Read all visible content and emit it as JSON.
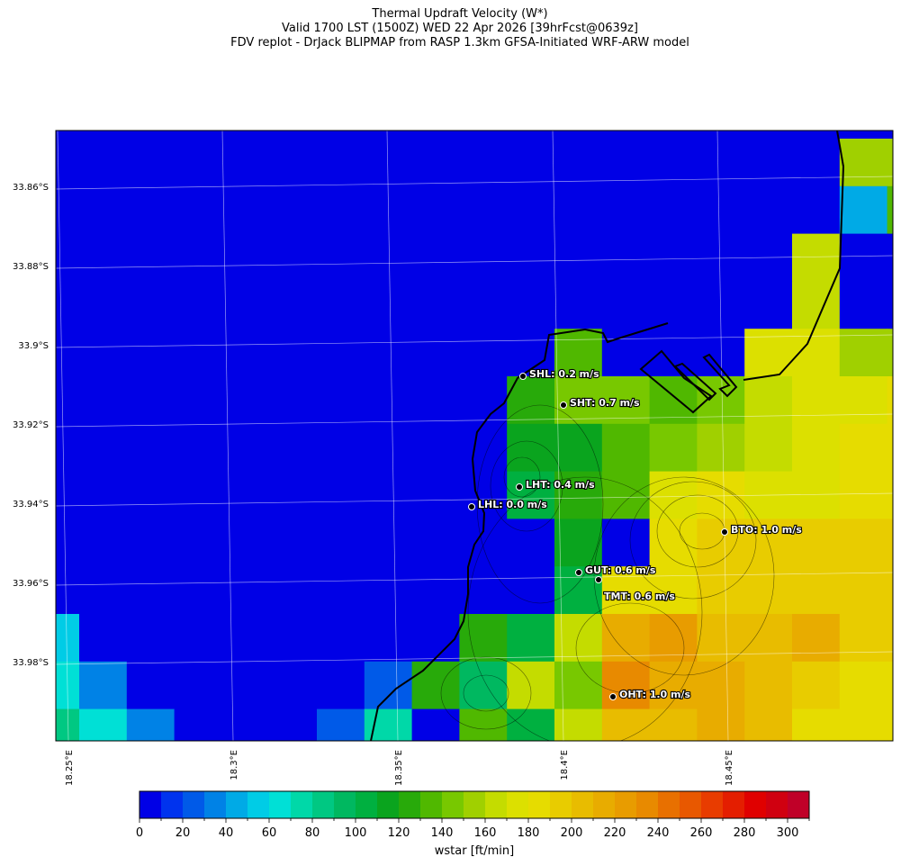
{
  "title": {
    "line1": "Thermal Updraft Velocity (W*)",
    "line2": "Valid 1700 LST (1500Z) WED 22 Apr 2026 [39hrFcst@0639z]",
    "line3": "FDV replot - DrJack BLIPMAP from RASP 1.3km GFSA-Initiated WRF-ARW model"
  },
  "chart_data": {
    "type": "heatmap",
    "lat_ticks": [
      "33.86°S",
      "33.88°S",
      "33.9°S",
      "33.92°S",
      "33.94°S",
      "33.96°S",
      "33.98°S"
    ],
    "lon_ticks": [
      "18.25°E",
      "18.3°E",
      "18.35°E",
      "18.4°E",
      "18.45°E"
    ],
    "grid_lines": true,
    "units": "ft/min",
    "wstar_grid": [
      [
        5,
        5,
        5,
        5,
        5,
        5,
        5,
        5,
        5,
        5,
        5,
        5,
        5,
        5,
        5,
        5,
        5,
        5,
        5
      ],
      [
        5,
        5,
        5,
        5,
        5,
        5,
        5,
        5,
        5,
        5,
        5,
        5,
        5,
        5,
        5,
        5,
        5,
        155,
        155
      ],
      [
        5,
        5,
        5,
        5,
        5,
        5,
        5,
        5,
        5,
        5,
        5,
        5,
        5,
        5,
        5,
        5,
        5,
        45,
        135
      ],
      [
        5,
        5,
        5,
        5,
        5,
        5,
        5,
        5,
        5,
        5,
        5,
        5,
        5,
        5,
        5,
        5,
        165,
        5,
        5
      ],
      [
        5,
        5,
        5,
        5,
        5,
        5,
        5,
        5,
        5,
        5,
        5,
        5,
        5,
        5,
        5,
        5,
        165,
        5,
        5
      ],
      [
        5,
        5,
        5,
        5,
        5,
        5,
        5,
        5,
        5,
        5,
        5,
        135,
        5,
        5,
        5,
        175,
        175,
        155,
        155
      ],
      [
        5,
        5,
        5,
        5,
        5,
        5,
        5,
        5,
        5,
        5,
        125,
        145,
        145,
        135,
        145,
        165,
        175,
        175,
        185
      ],
      [
        5,
        5,
        5,
        5,
        5,
        5,
        5,
        5,
        5,
        5,
        115,
        115,
        135,
        145,
        155,
        165,
        175,
        185,
        185
      ],
      [
        5,
        5,
        5,
        5,
        5,
        5,
        5,
        5,
        5,
        5,
        105,
        125,
        135,
        175,
        185,
        175,
        175,
        185,
        185
      ],
      [
        5,
        5,
        5,
        5,
        5,
        5,
        5,
        5,
        5,
        5,
        5,
        115,
        5,
        185,
        195,
        195,
        195,
        195,
        195
      ],
      [
        5,
        5,
        5,
        5,
        5,
        5,
        5,
        5,
        5,
        5,
        5,
        105,
        185,
        185,
        195,
        195,
        195,
        195,
        195
      ],
      [
        55,
        5,
        5,
        5,
        5,
        5,
        5,
        5,
        5,
        125,
        105,
        165,
        215,
        225,
        205,
        205,
        215,
        195,
        195
      ],
      [
        65,
        35,
        5,
        5,
        5,
        5,
        5,
        25,
        125,
        95,
        165,
        145,
        235,
        215,
        215,
        205,
        195,
        185,
        185
      ],
      [
        85,
        65,
        35,
        5,
        5,
        5,
        25,
        75,
        5,
        135,
        105,
        165,
        205,
        205,
        215,
        205,
        185,
        185,
        185
      ]
    ],
    "stations": [
      {
        "label": "SHL: 0.2 m/s"
      },
      {
        "label": "SHT: 0.7 m/s"
      },
      {
        "label": "LHT: 0.4 m/s"
      },
      {
        "label": "LHL: 0.0 m/s"
      },
      {
        "label": "BTO: 1.0 m/s"
      },
      {
        "label": "GUT: 0.6 m/s"
      },
      {
        "label": "TMT: 0.6 m/s"
      },
      {
        "label": "OHT: 1.0 m/s"
      }
    ],
    "colorbar": {
      "label": "wstar [ft/min]",
      "range": [
        0,
        310
      ],
      "step": 10,
      "ticks": [
        "0",
        "20",
        "40",
        "60",
        "80",
        "100",
        "120",
        "140",
        "160",
        "180",
        "200",
        "220",
        "240",
        "260",
        "280",
        "300"
      ],
      "colors": [
        "#0000e6",
        "#0033ee",
        "#005ae8",
        "#0082e6",
        "#00aae6",
        "#00cce6",
        "#00e0d6",
        "#00d8a8",
        "#00c882",
        "#00b860",
        "#00b040",
        "#0aa41e",
        "#28aa0a",
        "#50b800",
        "#78c800",
        "#a0d000",
        "#c4dc00",
        "#dce000",
        "#e6dc00",
        "#e8cc00",
        "#e8bc00",
        "#e8ac00",
        "#e89c00",
        "#e88a00",
        "#e87000",
        "#e85800",
        "#e83c00",
        "#e41e00",
        "#e00000",
        "#d00010",
        "#c00028"
      ]
    }
  }
}
